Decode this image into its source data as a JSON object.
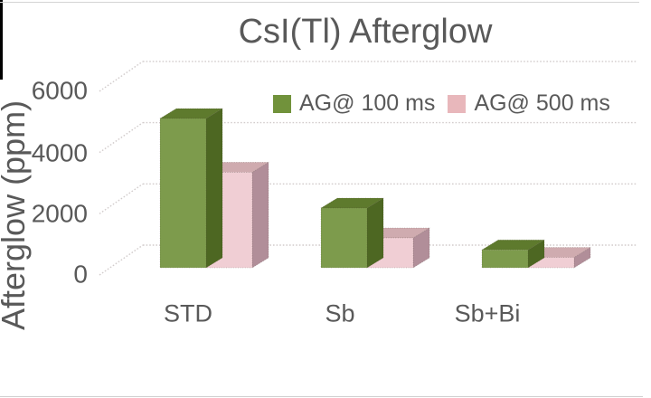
{
  "chart_data": {
    "type": "bar",
    "subtype": "3d-clustered-column",
    "title": "CsI(Tl) Afterglow",
    "categories": [
      "STD",
      "Sb",
      "Sb+Bi"
    ],
    "series": [
      {
        "name": "AG@ 100 ms",
        "values": [
          5000,
          2000,
          600
        ],
        "colors": {
          "front": "#7D9B4C",
          "top": "#5E7A2D",
          "side": "#4D6722",
          "legend": "#71923B"
        }
      },
      {
        "name": "AG@ 500 ms",
        "values": [
          3200,
          1000,
          350
        ],
        "colors": {
          "front": "#F0CED4",
          "top": "#CFABAF",
          "side": "#B18E99",
          "legend": "#E8B7BB"
        }
      }
    ],
    "ylabel": "Afterglow (ppm)",
    "xlabel": "",
    "ylim": [
      0,
      6000
    ],
    "yticks": [
      0,
      2000,
      4000,
      6000
    ],
    "ytick_labels": [
      "0",
      "2000",
      "4000",
      "6000"
    ],
    "grid": true,
    "legend_position": "top-center-inside",
    "text_color": "#595959",
    "gridline_color": "#D2CCCC",
    "background": "#FFFFFF"
  }
}
